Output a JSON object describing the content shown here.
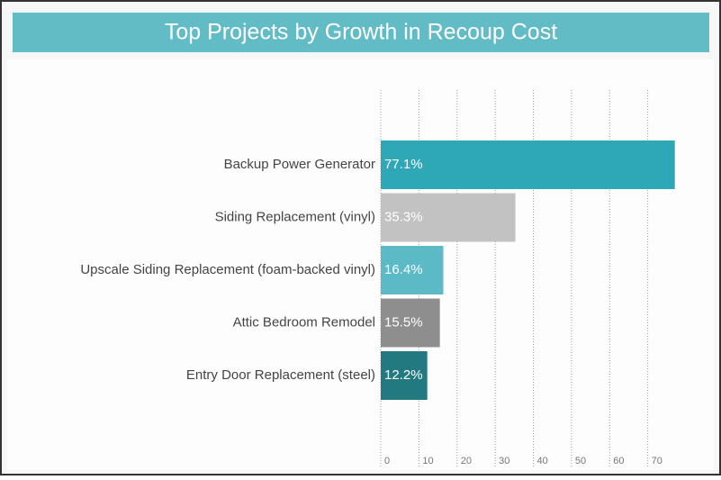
{
  "chart_data": {
    "type": "bar",
    "orientation": "horizontal",
    "title": "Top Projects by Growth in Recoup Cost",
    "categories": [
      "Backup Power Generator",
      "Siding Replacement (vinyl)",
      "Upscale Siding Replacement (foam-backed vinyl)",
      "Attic Bedroom Remodel",
      "Entry Door Replacement (steel)"
    ],
    "values": [
      77.1,
      35.3,
      16.4,
      15.5,
      12.2
    ],
    "value_labels": [
      "77.1%",
      "35.3%",
      "16.4%",
      "15.5%",
      "12.2%"
    ],
    "colors": [
      "#2ea8b6",
      "#c2c2c2",
      "#5bbac6",
      "#8e8e8e",
      "#22797f"
    ],
    "xlim": [
      0,
      80
    ],
    "xticks": [
      0,
      10,
      20,
      30,
      40,
      50,
      60,
      70
    ],
    "grid": true
  }
}
